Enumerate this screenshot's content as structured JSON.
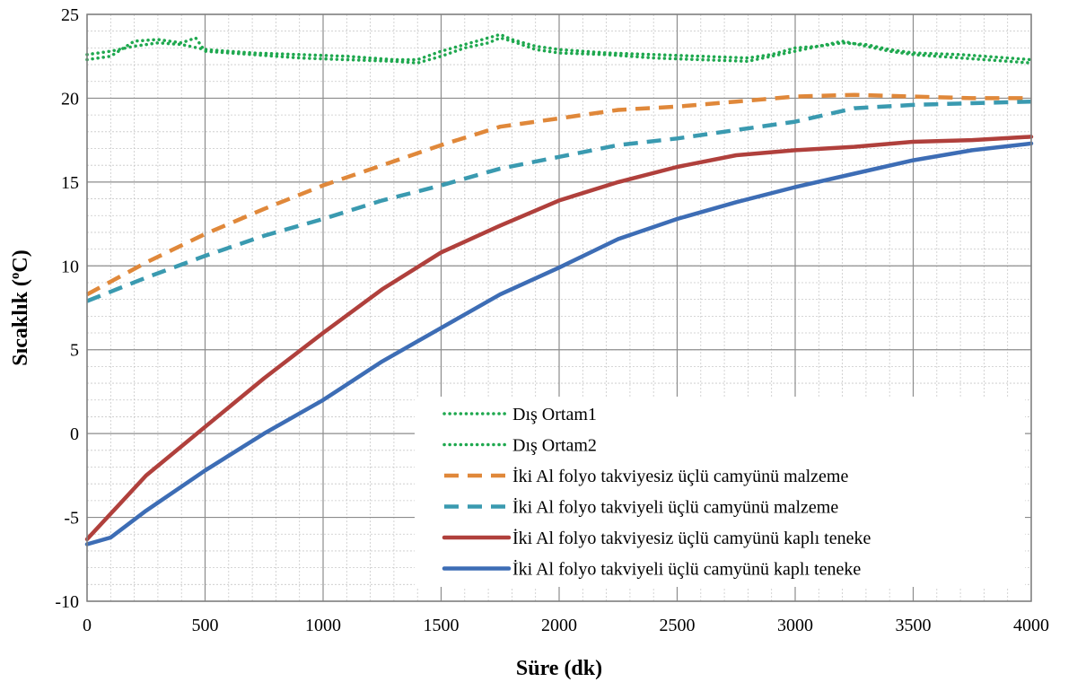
{
  "chart_data": {
    "type": "line",
    "xlabel": "Süre (dk)",
    "ylabel_main": "Sıcaklık (",
    "ylabel_sup": "o",
    "ylabel_tail": "C)",
    "xlim": [
      0,
      4000
    ],
    "ylim": [
      -10,
      25
    ],
    "xticks": [
      0,
      500,
      1000,
      1500,
      2000,
      2500,
      3000,
      3500,
      4000
    ],
    "yticks": [
      -10,
      -5,
      0,
      5,
      10,
      15,
      20,
      25
    ],
    "grid": true,
    "legend_position": "lower-right",
    "series": [
      {
        "name": "Dış Ortam1",
        "color": "#1fa84f",
        "style": "dotted",
        "x": [
          0,
          100,
          200,
          300,
          400,
          500,
          700,
          900,
          1100,
          1300,
          1400,
          1500,
          1600,
          1700,
          1750,
          1800,
          1900,
          2000,
          2200,
          2400,
          2600,
          2800,
          2900,
          3000,
          3100,
          3200,
          3300,
          3400,
          3500,
          3700,
          3900,
          4000
        ],
        "y": [
          22.6,
          22.8,
          23.1,
          23.3,
          23.2,
          22.9,
          22.7,
          22.6,
          22.5,
          22.3,
          22.3,
          22.8,
          23.2,
          23.6,
          23.8,
          23.5,
          23.1,
          22.9,
          22.7,
          22.6,
          22.5,
          22.4,
          22.6,
          23.0,
          23.1,
          23.3,
          23.2,
          22.9,
          22.7,
          22.6,
          22.4,
          22.3
        ]
      },
      {
        "name": "Dış Ortam2",
        "color": "#1fa84f",
        "style": "dotted",
        "x": [
          0,
          100,
          200,
          300,
          400,
          460,
          500,
          700,
          900,
          1100,
          1300,
          1400,
          1500,
          1600,
          1700,
          1750,
          1800,
          1900,
          2000,
          2200,
          2400,
          2600,
          2800,
          2900,
          3000,
          3100,
          3200,
          3300,
          3400,
          3500,
          3700,
          3900,
          4000
        ],
        "y": [
          22.3,
          22.5,
          23.4,
          23.5,
          23.3,
          23.6,
          22.8,
          22.6,
          22.4,
          22.3,
          22.2,
          22.1,
          22.5,
          23.0,
          23.3,
          23.6,
          23.4,
          22.9,
          22.7,
          22.6,
          22.4,
          22.3,
          22.2,
          22.5,
          22.8,
          23.1,
          23.4,
          23.1,
          22.8,
          22.6,
          22.4,
          22.2,
          22.1
        ]
      },
      {
        "name": "İki Al folyo takviyesiz üçlü camyünü malzeme",
        "color": "#e0883a",
        "style": "dashed",
        "x": [
          0,
          250,
          500,
          750,
          1000,
          1250,
          1500,
          1750,
          2000,
          2250,
          2500,
          2750,
          3000,
          3250,
          3500,
          3750,
          4000
        ],
        "y": [
          8.3,
          10.2,
          11.9,
          13.4,
          14.8,
          16.0,
          17.2,
          18.3,
          18.8,
          19.3,
          19.5,
          19.8,
          20.1,
          20.2,
          20.1,
          20.0,
          20.0
        ]
      },
      {
        "name": "İki Al folyo takviyeli üçlü camyünü malzeme",
        "color": "#3a9ab0",
        "style": "dashed",
        "x": [
          0,
          250,
          500,
          750,
          1000,
          1250,
          1500,
          1750,
          2000,
          2250,
          2500,
          2750,
          3000,
          3250,
          3500,
          3750,
          4000
        ],
        "y": [
          7.9,
          9.3,
          10.6,
          11.8,
          12.8,
          13.9,
          14.8,
          15.8,
          16.5,
          17.2,
          17.6,
          18.1,
          18.6,
          19.4,
          19.6,
          19.7,
          19.8
        ]
      },
      {
        "name": "İki Al folyo takviyesiz üçlü camyünü kaplı teneke",
        "color": "#b0403c",
        "style": "solid",
        "x": [
          0,
          250,
          500,
          750,
          1000,
          1250,
          1500,
          1750,
          2000,
          2250,
          2500,
          2750,
          3000,
          3250,
          3500,
          3750,
          4000
        ],
        "y": [
          -6.3,
          -2.5,
          0.4,
          3.3,
          6.0,
          8.6,
          10.8,
          12.4,
          13.9,
          15.0,
          15.9,
          16.6,
          16.9,
          17.1,
          17.4,
          17.5,
          17.7
        ]
      },
      {
        "name": "İki Al folyo takviyeli üçlü camyünü kaplı teneke",
        "color": "#3d6db5",
        "style": "solid",
        "x": [
          0,
          100,
          250,
          500,
          750,
          1000,
          1250,
          1500,
          1750,
          2000,
          2250,
          2500,
          2750,
          3000,
          3250,
          3500,
          3750,
          4000
        ],
        "y": [
          -6.6,
          -6.2,
          -4.6,
          -2.2,
          0.0,
          2.0,
          4.3,
          6.3,
          8.3,
          9.9,
          11.6,
          12.8,
          13.8,
          14.7,
          15.5,
          16.3,
          16.9,
          17.3
        ]
      }
    ]
  }
}
